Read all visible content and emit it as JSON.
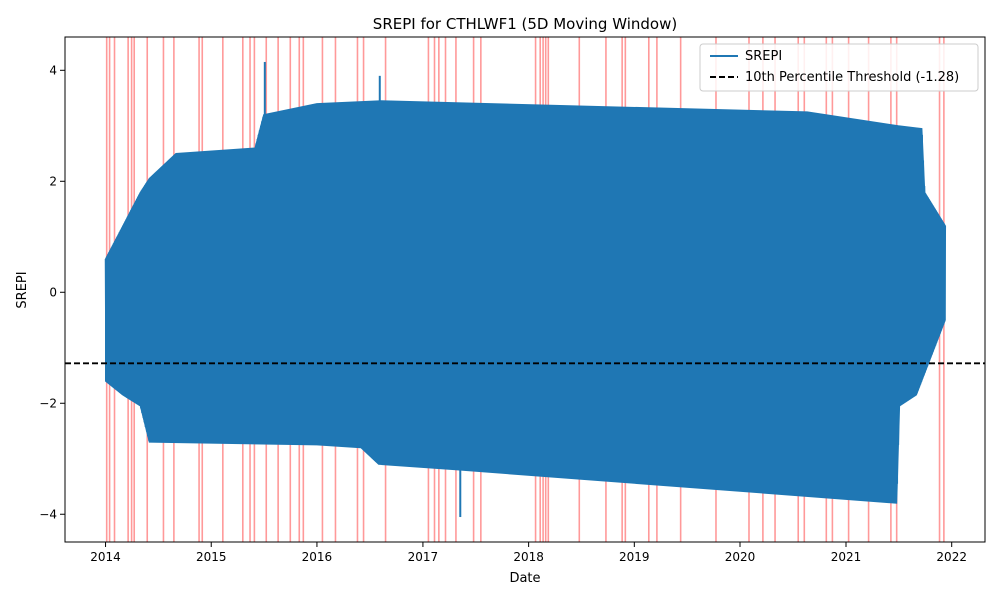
{
  "chart_data": {
    "type": "line",
    "title": "SREPI for CTHLWF1 (5D Moving Window)",
    "xlabel": "Date",
    "ylabel": "SREPI",
    "xlim": [
      "2013-08-14",
      "2022-04-26"
    ],
    "ylim": [
      -4.5,
      4.6
    ],
    "x_ticks": [
      "2014",
      "2015",
      "2016",
      "2017",
      "2018",
      "2019",
      "2020",
      "2021",
      "2022"
    ],
    "y_ticks": [
      -4,
      -2,
      0,
      2,
      4
    ],
    "y_tick_labels": [
      "−4",
      "−2",
      "0",
      "2",
      "4"
    ],
    "grid": false,
    "legend_position": "top-right",
    "threshold": {
      "label": "10th Percentile Threshold (-1.28)",
      "value": -1.28,
      "color": "#000000",
      "style": "dashed"
    },
    "series": [
      {
        "name": "SREPI",
        "color": "#1f77b4",
        "upper_envelope": [
          [
            "2014-01-01",
            0.6
          ],
          [
            "2014-02-10",
            1.0
          ],
          [
            "2014-04-01",
            1.5
          ],
          [
            "2014-05-01",
            1.8
          ],
          [
            "2014-06-01",
            2.05
          ],
          [
            "2014-09-01",
            2.5
          ],
          [
            "2015-06-01",
            2.6
          ],
          [
            "2015-07-01",
            3.2
          ],
          [
            "2016-01-01",
            3.4
          ],
          [
            "2016-08-10",
            3.45
          ],
          [
            "2020-08-20",
            3.25
          ],
          [
            "2021-07-01",
            3.0
          ],
          [
            "2021-09-20",
            2.95
          ],
          [
            "2021-09-30",
            1.8
          ],
          [
            "2021-12-10",
            1.2
          ]
        ],
        "lower_envelope": [
          [
            "2014-01-01",
            -1.6
          ],
          [
            "2014-03-01",
            -1.85
          ],
          [
            "2014-05-01",
            -2.05
          ],
          [
            "2014-06-01",
            -2.7
          ],
          [
            "2016-01-01",
            -2.75
          ],
          [
            "2016-06-01",
            -2.8
          ],
          [
            "2016-08-01",
            -3.1
          ],
          [
            "2017-05-01",
            -3.2
          ],
          [
            "2021-06-25",
            -3.8
          ],
          [
            "2021-07-05",
            -2.05
          ],
          [
            "2021-09-01",
            -1.85
          ],
          [
            "2021-12-10",
            -0.5
          ]
        ],
        "spikes": [
          [
            "2015-07-05",
            4.15
          ],
          [
            "2016-08-05",
            3.9
          ],
          [
            "2017-05-10",
            -4.05
          ]
        ]
      }
    ],
    "drought_dates": [
      "2014-01-05",
      "2014-01-15",
      "2014-02-01",
      "2014-03-20",
      "2014-04-01",
      "2014-04-10",
      "2014-05-25",
      "2014-07-20",
      "2014-08-25",
      "2014-11-20",
      "2014-12-01",
      "2015-02-10",
      "2015-04-20",
      "2015-05-15",
      "2015-05-30",
      "2015-07-10",
      "2015-08-20",
      "2015-10-01",
      "2015-11-01",
      "2015-11-15",
      "2016-01-20",
      "2016-03-05",
      "2016-05-20",
      "2016-06-10",
      "2016-08-25",
      "2017-01-20",
      "2017-02-10",
      "2017-02-25",
      "2017-03-20",
      "2017-04-25",
      "2017-06-25",
      "2017-07-20",
      "2018-01-25",
      "2018-02-10",
      "2018-02-20",
      "2018-03-01",
      "2018-03-10",
      "2018-06-25",
      "2018-09-25",
      "2018-11-20",
      "2018-12-01",
      "2019-02-20",
      "2019-03-20",
      "2019-06-10",
      "2019-10-10",
      "2020-02-01",
      "2020-03-20",
      "2020-05-01",
      "2020-07-20",
      "2020-08-10",
      "2020-10-25",
      "2020-11-15",
      "2021-01-10",
      "2021-03-20",
      "2021-06-05",
      "2021-06-25",
      "2021-11-20",
      "2021-12-05"
    ]
  }
}
